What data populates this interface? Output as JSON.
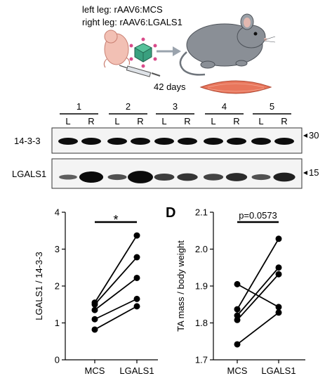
{
  "schematic": {
    "line1": "left leg: rAAV6:MCS",
    "line2": "right leg: rAAV6:LGALS1",
    "duration": "42 days"
  },
  "blot": {
    "mice": [
      "1",
      "2",
      "3",
      "4",
      "5"
    ],
    "lanes": [
      "L",
      "R"
    ],
    "rows": [
      {
        "label": "14-3-3",
        "marker": "30"
      },
      {
        "label": "LGALS1",
        "marker": "15"
      }
    ]
  },
  "chart_data": [
    {
      "type": "line",
      "panel_label": "",
      "title": "",
      "categories": [
        "MCS",
        "LGALS1"
      ],
      "ylabel": "LGALS1 / 14-3-3",
      "ylim": [
        0,
        4
      ],
      "yticks": [
        "0",
        "1",
        "2",
        "3",
        "4"
      ],
      "significance": "*",
      "series": [
        {
          "values": [
            1.55,
            3.37
          ]
        },
        {
          "values": [
            1.5,
            2.78
          ]
        },
        {
          "values": [
            1.35,
            2.22
          ]
        },
        {
          "values": [
            1.1,
            1.65
          ]
        },
        {
          "values": [
            0.82,
            1.45
          ]
        }
      ]
    },
    {
      "type": "line",
      "panel_label": "D",
      "title": "",
      "categories": [
        "MCS",
        "LGALS1"
      ],
      "ylabel": "TA mass / body weight",
      "ylim": [
        1.7,
        2.1
      ],
      "yticks": [
        "1.7",
        "1.8",
        "1.9",
        "2.0",
        "2.1"
      ],
      "significance": "p=0.0573",
      "series": [
        {
          "values": [
            1.905,
            1.843
          ]
        },
        {
          "values": [
            1.837,
            2.028
          ]
        },
        {
          "values": [
            1.82,
            1.95
          ]
        },
        {
          "values": [
            1.808,
            1.932
          ]
        },
        {
          "values": [
            1.742,
            1.828
          ]
        }
      ]
    }
  ]
}
